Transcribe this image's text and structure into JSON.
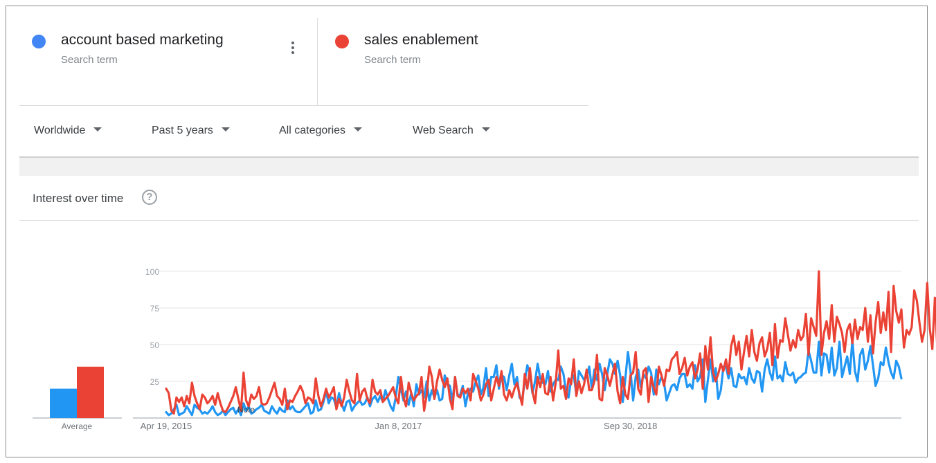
{
  "terms": [
    {
      "name": "account based marketing",
      "sub": "Search term",
      "color": "#4285f4"
    },
    {
      "name": "sales enablement",
      "sub": "Search term",
      "color": "#ea4335"
    }
  ],
  "more_icon": "more-vertical-icon",
  "help_icon": "help-circle-icon",
  "help_glyph": "?",
  "filters": [
    {
      "label": "Worldwide"
    },
    {
      "label": "Past 5 years"
    },
    {
      "label": "All categories"
    },
    {
      "label": "Web Search"
    }
  ],
  "section_title": "Interest over time",
  "chart_data": {
    "type": "line",
    "ylim": [
      0,
      100
    ],
    "yticks": [
      25,
      50,
      75,
      100
    ],
    "grid": true,
    "x_tick_labels": [
      "Apr 19, 2015",
      "Jan 8, 2017",
      "Sep 30, 2018"
    ],
    "x_tick_indices": [
      0,
      90,
      180
    ],
    "annotation": {
      "label": "Note",
      "index": 31
    },
    "average": {
      "label": "Average",
      "values": [
        20,
        35
      ]
    },
    "series": [
      {
        "color": "#2196f3",
        "values": [
          4,
          2,
          3,
          6,
          9,
          2,
          3,
          4,
          8,
          5,
          2,
          9,
          7,
          6,
          3,
          4,
          3,
          5,
          8,
          4,
          2,
          3,
          5,
          2,
          4,
          6,
          7,
          3,
          6,
          2,
          10,
          5,
          8,
          3,
          4,
          6,
          7,
          9,
          5,
          4,
          3,
          8,
          5,
          3,
          7,
          5,
          4,
          12,
          6,
          8,
          5,
          4,
          4,
          6,
          8,
          10,
          3,
          4,
          12,
          5,
          6,
          11,
          18,
          10,
          14,
          13,
          7,
          17,
          10,
          5,
          11,
          12,
          5,
          8,
          10,
          12,
          9,
          10,
          14,
          8,
          13,
          15,
          11,
          15,
          11,
          19,
          13,
          8,
          5,
          14,
          28,
          20,
          12,
          18,
          9,
          17,
          8,
          23,
          16,
          19,
          14,
          25,
          12,
          19,
          14,
          19,
          12,
          13,
          29,
          23,
          22,
          11,
          28,
          15,
          16,
          22,
          8,
          17,
          20,
          18,
          25,
          29,
          16,
          21,
          34,
          15,
          28,
          28,
          36,
          20,
          29,
          28,
          19,
          29,
          37,
          23,
          28,
          14,
          12,
          25,
          36,
          30,
          17,
          25,
          37,
          27,
          24,
          23,
          32,
          18,
          23,
          26,
          26,
          35,
          30,
          18,
          14,
          27,
          29,
          16,
          32,
          29,
          26,
          28,
          35,
          20,
          33,
          26,
          37,
          30,
          19,
          30,
          40,
          37,
          30,
          39,
          29,
          11,
          27,
          45,
          32,
          12,
          28,
          33,
          21,
          30,
          27,
          35,
          31,
          16,
          33,
          23,
          28,
          24,
          12,
          17,
          22,
          23,
          19,
          27,
          30,
          30,
          21,
          23,
          20,
          36,
          25,
          28,
          40,
          11,
          26,
          40,
          25,
          34,
          13,
          19,
          35,
          35,
          27,
          34,
          22,
          21,
          30,
          27,
          28,
          23,
          34,
          27,
          24,
          32,
          31,
          18,
          33,
          40,
          31,
          26,
          42,
          27,
          29,
          25,
          38,
          30,
          29,
          31,
          24,
          27,
          28,
          30,
          31,
          46,
          39,
          31,
          31,
          52,
          29,
          44,
          43,
          31,
          48,
          29,
          34,
          52,
          28,
          35,
          42,
          30,
          53,
          32,
          25,
          43,
          47,
          33,
          39,
          49,
          36,
          22,
          27,
          38,
          36,
          48,
          38,
          31,
          27,
          39,
          35,
          27
        ]
      },
      {
        "color": "#ea4335",
        "values": [
          20,
          17,
          5,
          3,
          14,
          11,
          14,
          8,
          15,
          10,
          24,
          15,
          10,
          6,
          16,
          14,
          10,
          12,
          15,
          9,
          17,
          10,
          5,
          4,
          7,
          11,
          15,
          21,
          13,
          5,
          31,
          12,
          8,
          16,
          13,
          15,
          21,
          10,
          9,
          10,
          14,
          19,
          24,
          15,
          13,
          9,
          20,
          6,
          12,
          11,
          15,
          18,
          22,
          18,
          10,
          14,
          13,
          10,
          27,
          15,
          8,
          13,
          20,
          14,
          17,
          21,
          6,
          13,
          8,
          14,
          26,
          18,
          12,
          10,
          30,
          12,
          18,
          20,
          13,
          10,
          26,
          18,
          16,
          19,
          11,
          13,
          15,
          18,
          21,
          14,
          10,
          28,
          14,
          8,
          24,
          17,
          12,
          15,
          17,
          28,
          5,
          16,
          35,
          28,
          13,
          25,
          33,
          26,
          21,
          27,
          13,
          6,
          28,
          15,
          14,
          20,
          17,
          20,
          12,
          30,
          25,
          20,
          12,
          16,
          23,
          26,
          12,
          20,
          28,
          22,
          32,
          16,
          12,
          19,
          14,
          20,
          24,
          16,
          9,
          30,
          20,
          34,
          18,
          10,
          28,
          21,
          30,
          17,
          16,
          28,
          12,
          24,
          46,
          20,
          22,
          13,
          27,
          23,
          40,
          15,
          25,
          17,
          23,
          33,
          19,
          19,
          25,
          43,
          13,
          12,
          34,
          29,
          22,
          30,
          37,
          18,
          10,
          28,
          16,
          13,
          29,
          31,
          45,
          20,
          16,
          32,
          34,
          11,
          28,
          21,
          16,
          35,
          29,
          22,
          33,
          32,
          40,
          42,
          45,
          30,
          34,
          41,
          29,
          35,
          38,
          27,
          33,
          44,
          20,
          49,
          33,
          55,
          31,
          25,
          30,
          37,
          32,
          40,
          30,
          49,
          56,
          43,
          52,
          33,
          45,
          56,
          42,
          60,
          45,
          39,
          51,
          55,
          42,
          47,
          58,
          36,
          64,
          41,
          53,
          52,
          68,
          57,
          46,
          53,
          48,
          60,
          53,
          56,
          71,
          43,
          68,
          62,
          56,
          100,
          43,
          58,
          66,
          54,
          77,
          52,
          69,
          64,
          58,
          45,
          60,
          64,
          51,
          67,
          54,
          62,
          60,
          75,
          52,
          70,
          44,
          65,
          79,
          58,
          72,
          60,
          86,
          45,
          90,
          73,
          65,
          74,
          48,
          60,
          57,
          62,
          87,
          80,
          65,
          52,
          60,
          92,
          61,
          47,
          82,
          45,
          90,
          80,
          73,
          76,
          83
        ]
      }
    ]
  }
}
